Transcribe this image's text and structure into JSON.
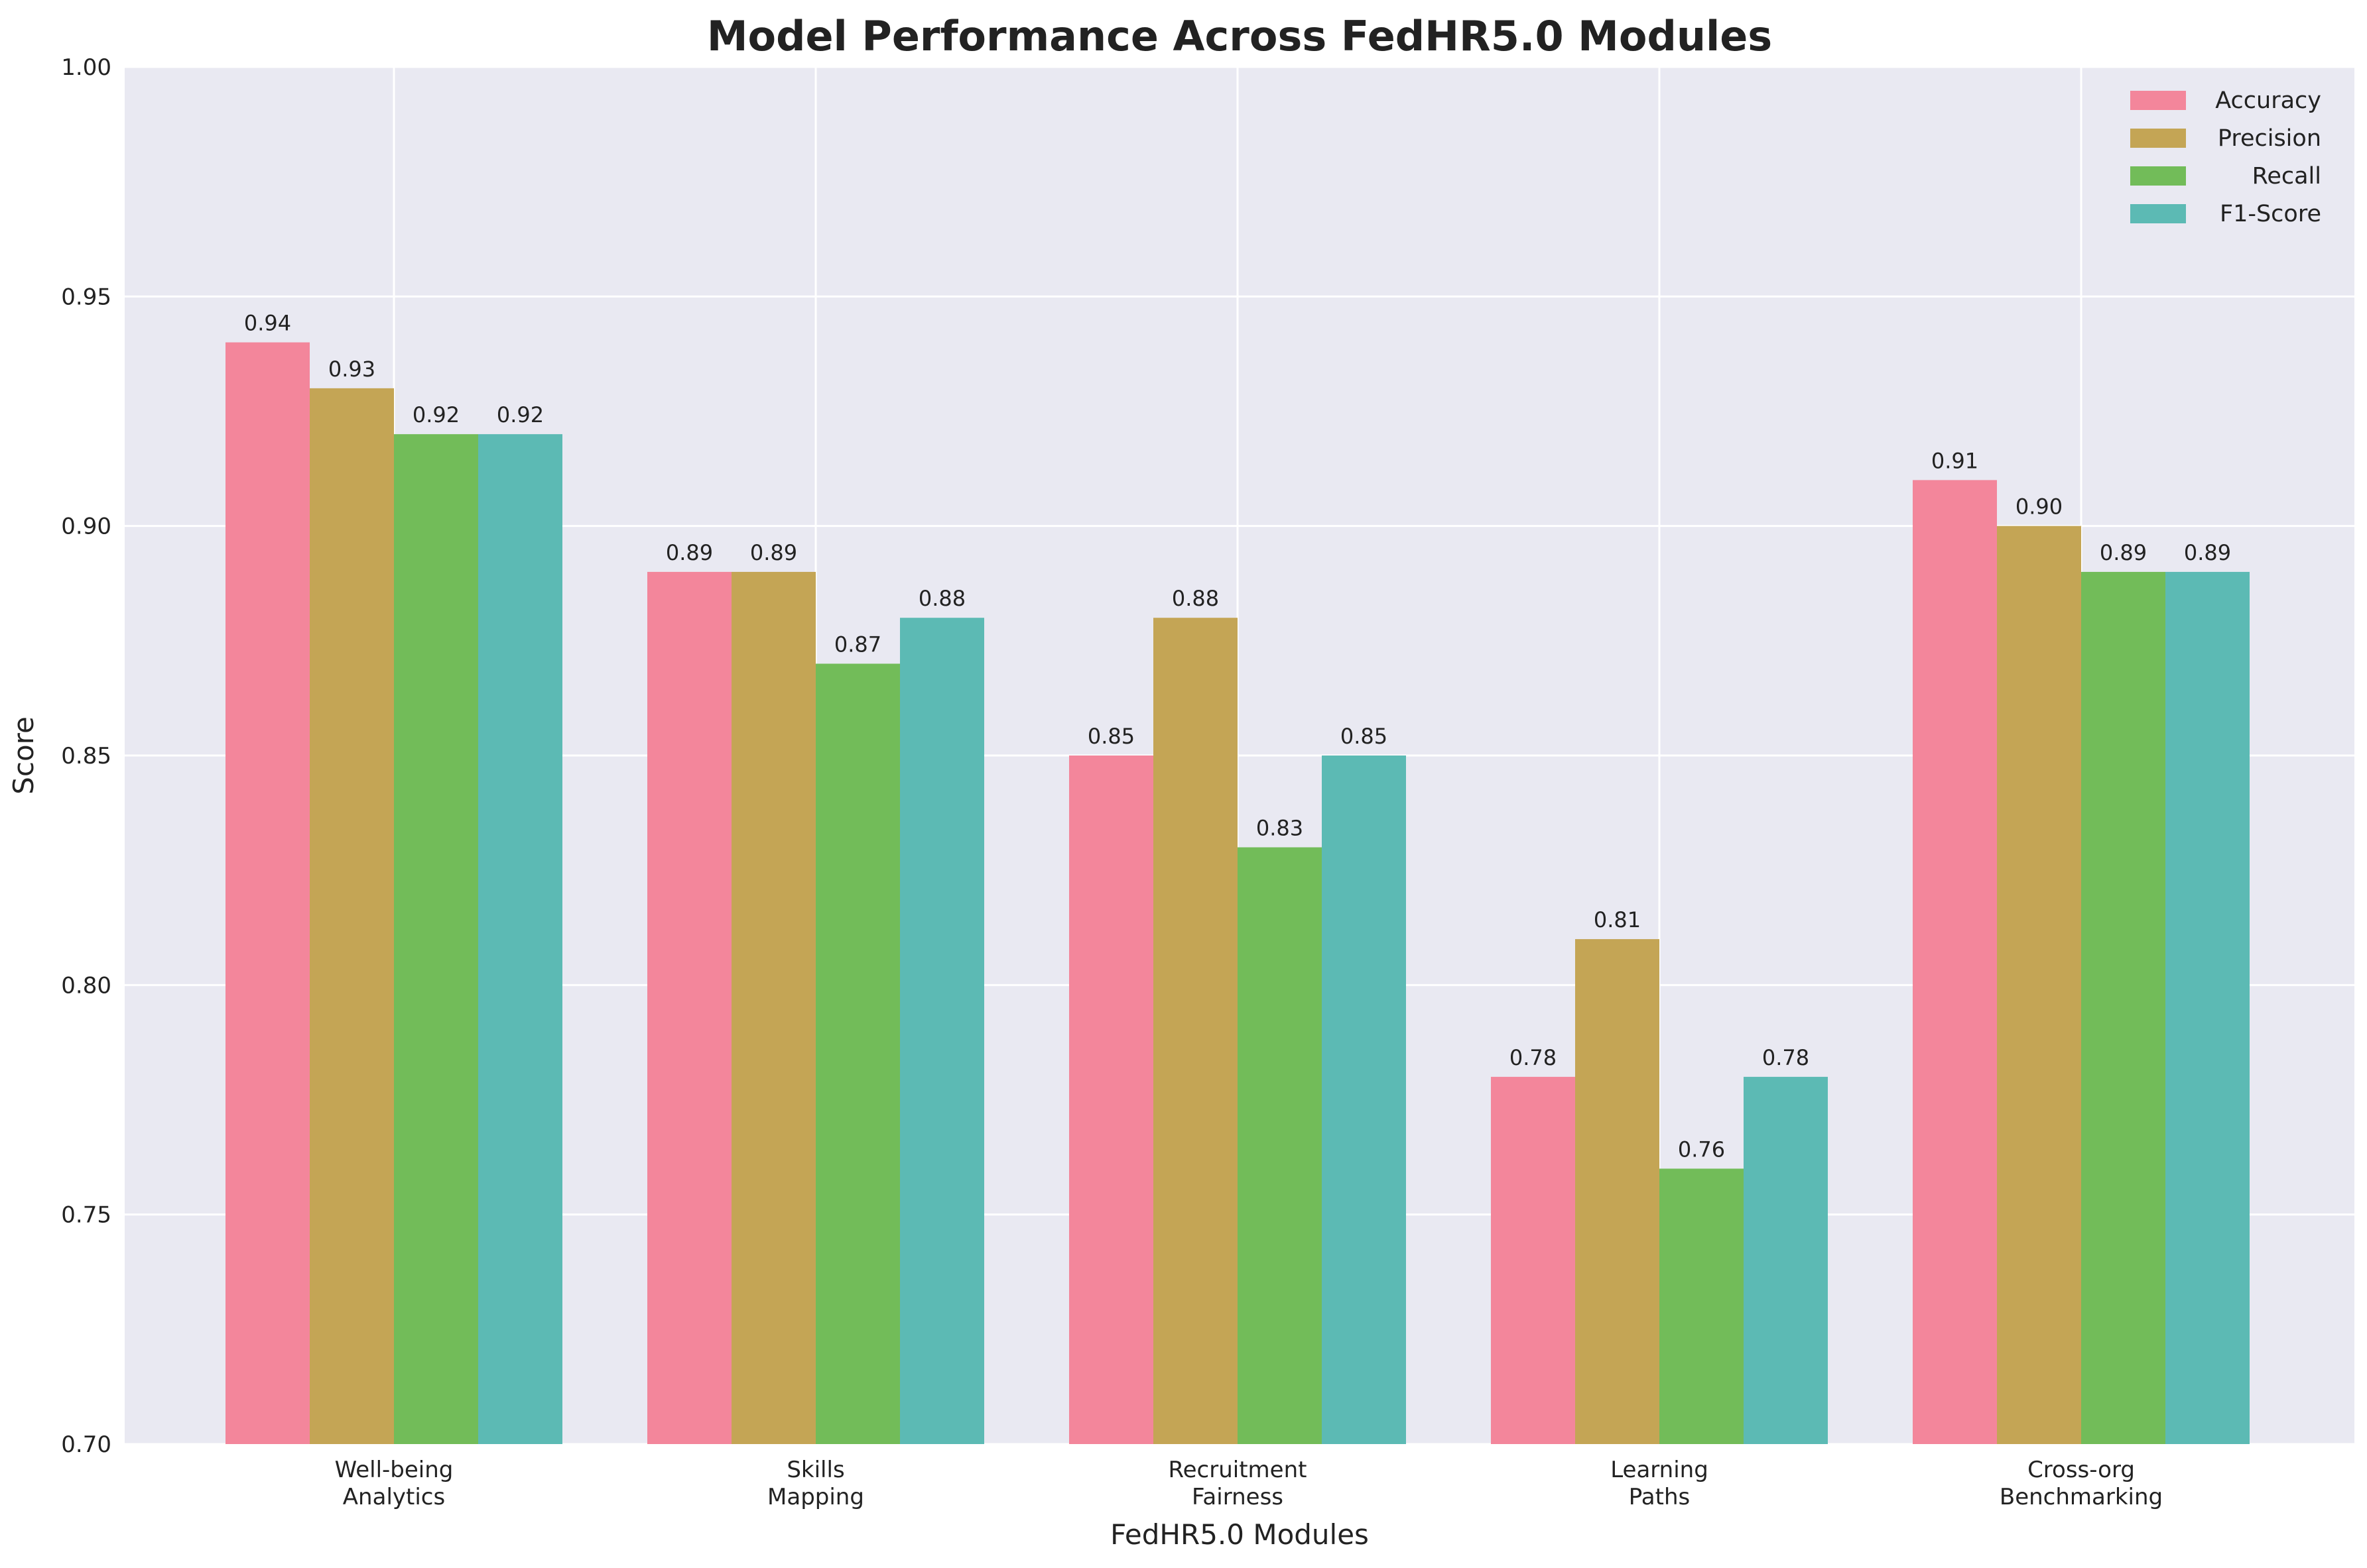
{
  "chart_data": {
    "type": "bar",
    "title": "Model Performance Across FedHR5.0 Modules",
    "xlabel": "FedHR5.0 Modules",
    "ylabel": "Score",
    "ylim": [
      0.7,
      1.0
    ],
    "yticks": [
      "0.70",
      "0.75",
      "0.80",
      "0.85",
      "0.90",
      "0.95",
      "1.00"
    ],
    "grid": true,
    "legend_position": "top-right",
    "categories": [
      [
        "Well-being",
        "Analytics"
      ],
      [
        "Skills",
        "Mapping"
      ],
      [
        "Recruitment",
        "Fairness"
      ],
      [
        "Learning",
        "Paths"
      ],
      [
        "Cross-org",
        "Benchmarking"
      ]
    ],
    "series": [
      {
        "name": "Accuracy",
        "color": "#f3869b",
        "values": [
          0.94,
          0.89,
          0.85,
          0.78,
          0.91
        ]
      },
      {
        "name": "Precision",
        "color": "#c4a555",
        "values": [
          0.93,
          0.89,
          0.88,
          0.81,
          0.9
        ]
      },
      {
        "name": "Recall",
        "color": "#72bc59",
        "values": [
          0.92,
          0.87,
          0.83,
          0.76,
          0.89
        ]
      },
      {
        "name": "F1-Score",
        "color": "#5cbab4",
        "values": [
          0.92,
          0.88,
          0.85,
          0.78,
          0.89
        ]
      }
    ],
    "value_format_decimals": 2,
    "plot_background": "#e9e9f2"
  }
}
